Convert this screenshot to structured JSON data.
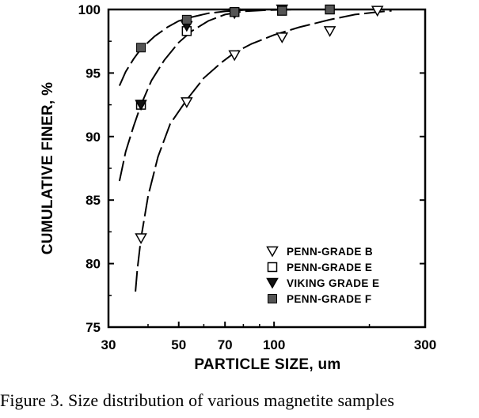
{
  "caption": "Figure 3.  Size distribution of various magnetite samples",
  "chart_data": {
    "type": "scatter",
    "title": "",
    "xlabel": "PARTICLE SIZE, um",
    "ylabel": "CUMULATIVE FINER, %",
    "xscale": "log",
    "xlim": [
      30,
      300
    ],
    "ylim": [
      75,
      100
    ],
    "xticks": [
      30,
      50,
      70,
      100,
      300
    ],
    "yticks": [
      75,
      80,
      85,
      90,
      95,
      100
    ],
    "grid": false,
    "legend_position": "bottom-right",
    "series": [
      {
        "name": "PENN-GRADE B",
        "marker": "triangle-down-open",
        "x": [
          38,
          53,
          75,
          106,
          150,
          212
        ],
        "y": [
          82.0,
          92.7,
          96.4,
          97.8,
          98.3,
          99.9
        ],
        "curve_x": [
          36.5,
          37,
          38,
          40,
          43,
          47,
          53,
          60,
          68,
          75,
          85,
          100,
          120,
          150,
          180,
          212,
          235
        ],
        "curve_y": [
          77.8,
          79.5,
          82.0,
          85.3,
          88.4,
          91.0,
          92.9,
          94.6,
          95.8,
          96.6,
          97.3,
          98.0,
          98.6,
          99.2,
          99.6,
          99.8,
          99.9
        ]
      },
      {
        "name": "PENN-GRADE E",
        "marker": "square-open",
        "x": [
          38,
          53,
          75,
          106,
          150
        ],
        "y": [
          92.5,
          98.3,
          99.8,
          99.9,
          100.0
        ],
        "curve_x": [
          32.5,
          34,
          36,
          38,
          41,
          45,
          50,
          55,
          62,
          70,
          80,
          95,
          115
        ],
        "curve_y": [
          86.5,
          88.8,
          90.8,
          92.5,
          94.4,
          96.0,
          97.4,
          98.3,
          99.1,
          99.6,
          99.85,
          99.95,
          100.0
        ]
      },
      {
        "name": "VIKING GRADE E",
        "marker": "triangle-down-filled",
        "x": [
          38,
          53,
          75,
          106
        ],
        "y": [
          92.5,
          98.7,
          99.7,
          100.0
        ]
      },
      {
        "name": "PENN-GRADE F",
        "marker": "square-filled",
        "x": [
          38,
          53,
          75,
          106,
          150
        ],
        "y": [
          97.0,
          99.2,
          99.8,
          99.9,
          100.0
        ],
        "curve_x": [
          32.5,
          34,
          36,
          38,
          42,
          46,
          50,
          55,
          62,
          70,
          80,
          90
        ],
        "curve_y": [
          94.0,
          95.1,
          96.1,
          96.9,
          97.9,
          98.6,
          99.1,
          99.4,
          99.7,
          99.85,
          99.95,
          100.0
        ]
      }
    ]
  }
}
